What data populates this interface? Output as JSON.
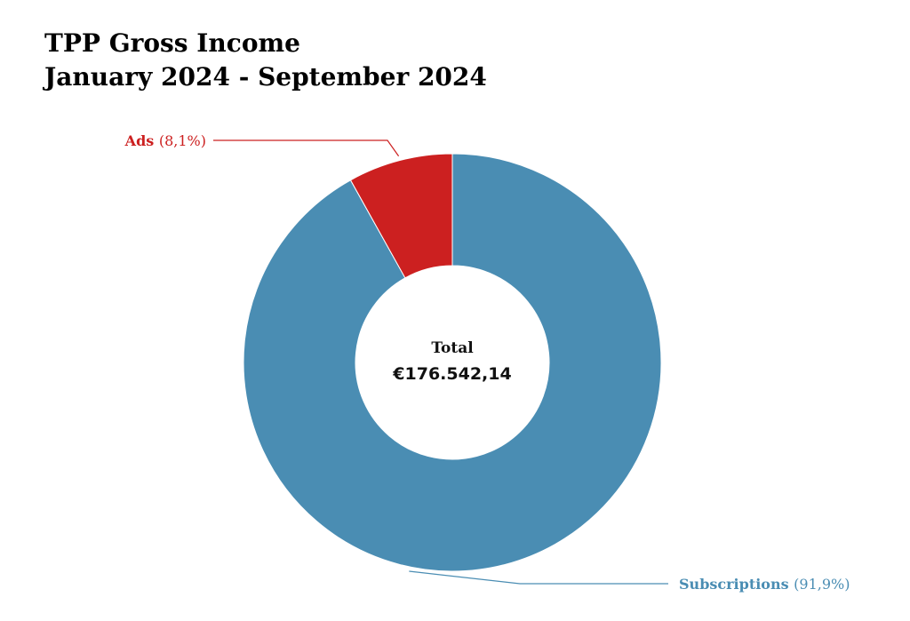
{
  "title": {
    "line1": "TPP Gross Income",
    "line2": "January 2024 - September 2024"
  },
  "center": {
    "label": "Total",
    "value": "€176.542,14"
  },
  "chart_data": {
    "type": "pie",
    "style": "donut",
    "title": "TPP Gross Income January 2024 - September 2024",
    "slices": [
      {
        "name": "Ads",
        "percent_label": "(8,1%)",
        "value": 8.1,
        "color": "#cc2020"
      },
      {
        "name": "Subscriptions",
        "percent_label": "(91,9%)",
        "value": 91.9,
        "color": "#4a8db3"
      }
    ],
    "total_label": "Total",
    "total_value": "€176.542,14"
  }
}
